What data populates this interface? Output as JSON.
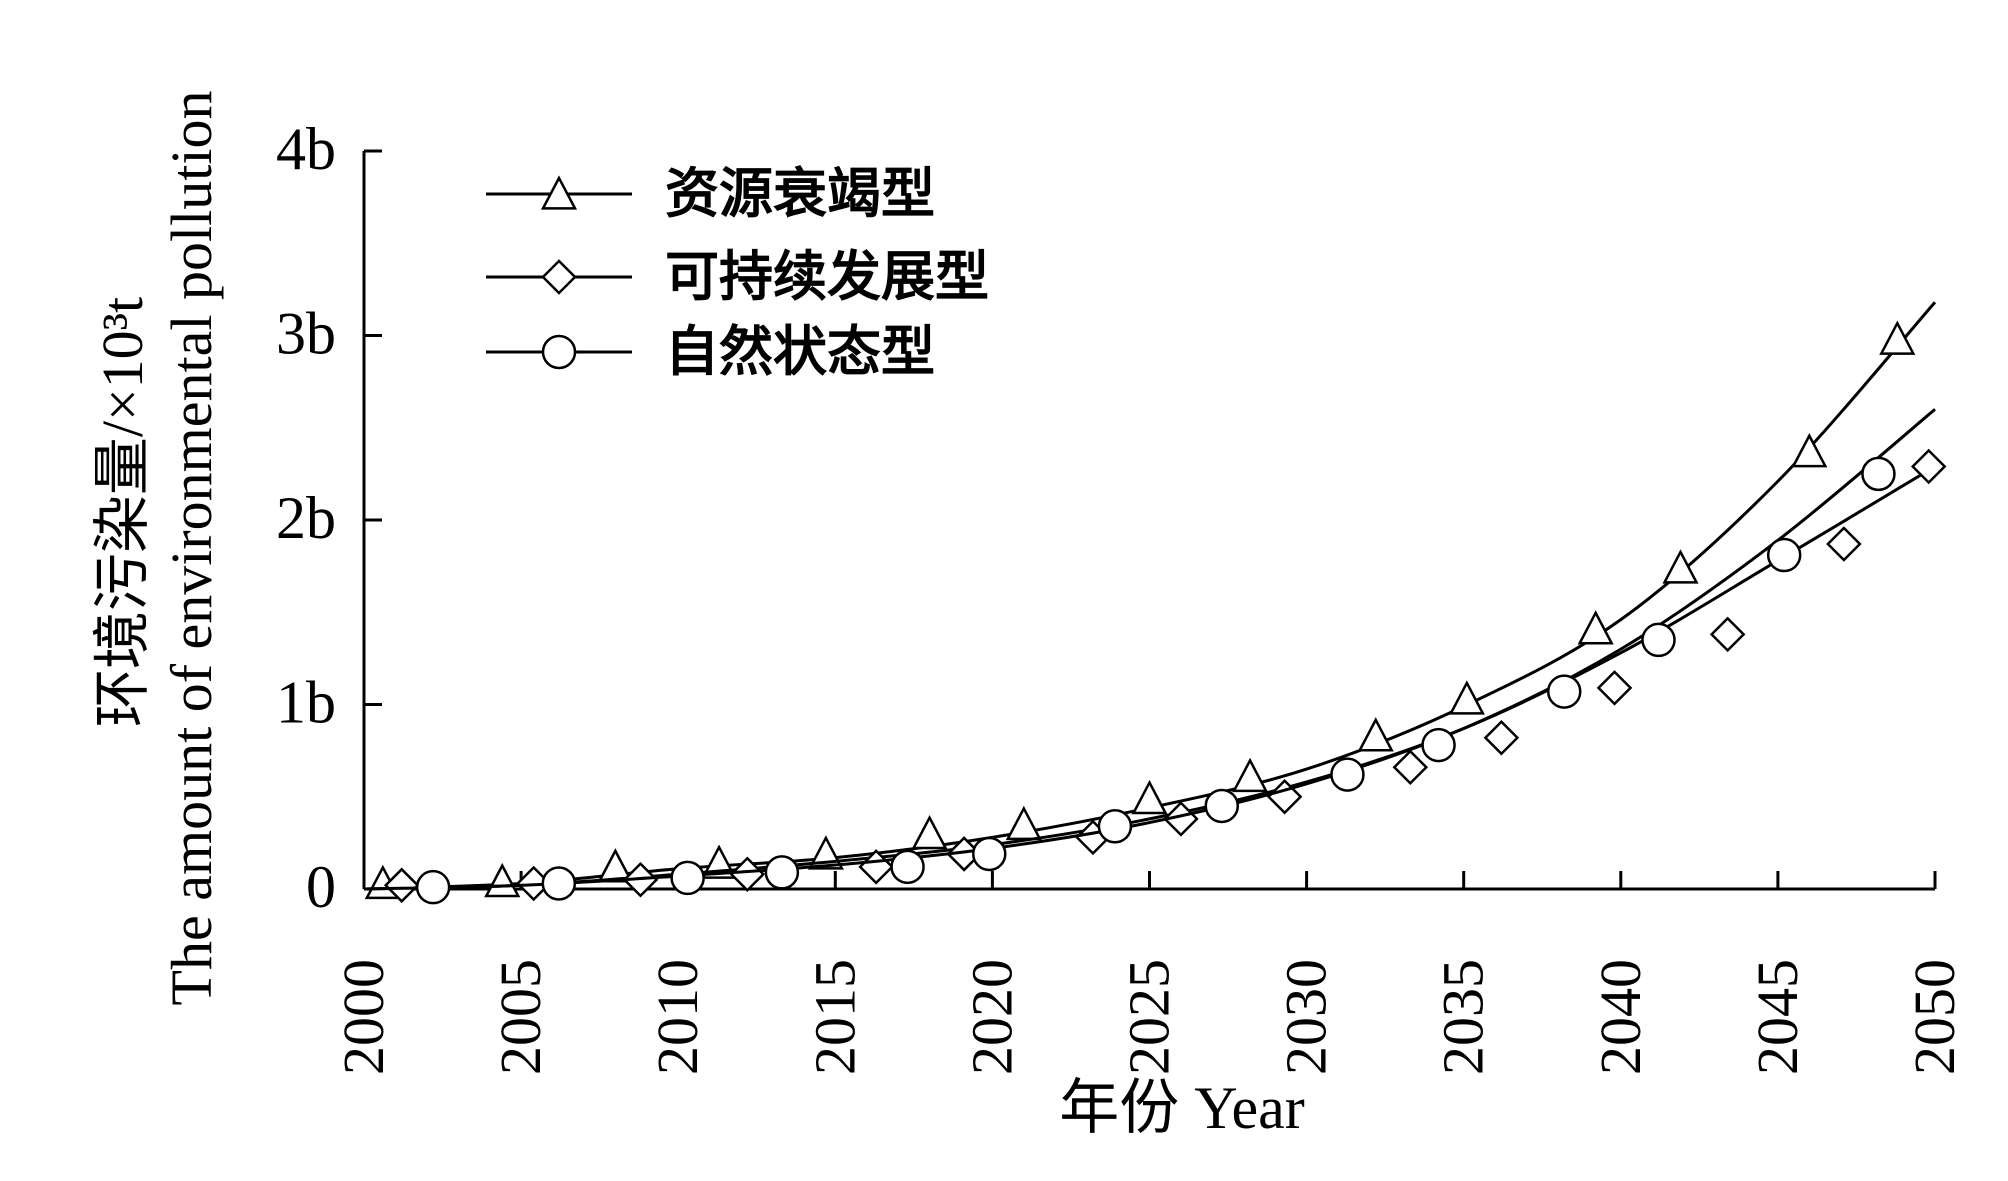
{
  "chart_data": {
    "type": "line",
    "xlabel": "年份 Year",
    "ylabel_line1": "环境污染量/×10³t",
    "ylabel_line2": "The amount of environmental pollution",
    "xlim": [
      2000,
      2050
    ],
    "ylim": [
      0,
      4
    ],
    "x_ticks": [
      "2000",
      "2005",
      "2010",
      "2015",
      "2020",
      "2025",
      "2030",
      "2035",
      "2040",
      "2045",
      "2050"
    ],
    "x_tick_values": [
      2000,
      2005,
      2010,
      2015,
      2020,
      2025,
      2030,
      2035,
      2040,
      2045,
      2050
    ],
    "y_ticks": [
      "0",
      "1b",
      "2b",
      "3b",
      "4b"
    ],
    "y_tick_values": [
      0,
      1,
      2,
      3,
      4
    ],
    "grid": false,
    "legend_position": "top-left",
    "series": [
      {
        "name": "资源衰竭型",
        "marker": "triangle",
        "curve_x": [
          2000,
          2005,
          2010,
          2015,
          2020,
          2025,
          2030,
          2035,
          2040,
          2045,
          2050
        ],
        "curve_y": [
          0,
          0.03,
          0.11,
          0.17,
          0.28,
          0.44,
          0.65,
          0.99,
          1.46,
          2.21,
          3.18
        ],
        "points_x": [
          2000.6,
          2004.4,
          2008.0,
          2011.3,
          2014.7,
          2018.0,
          2021.0,
          2025.0,
          2028.2,
          2032.2,
          2035.1,
          2039.2,
          2041.9,
          2046.0,
          2048.8
        ],
        "points_y": [
          0.03,
          0.04,
          0.12,
          0.14,
          0.19,
          0.3,
          0.35,
          0.49,
          0.61,
          0.83,
          1.03,
          1.41,
          1.74,
          2.37,
          2.98
        ]
      },
      {
        "name": "可持续发展型",
        "marker": "diamond",
        "curve_x": [
          2000,
          2005,
          2010,
          2015,
          2020,
          2025,
          2030,
          2035,
          2040,
          2045,
          2050
        ],
        "curve_y": [
          0,
          0.02,
          0.08,
          0.15,
          0.24,
          0.38,
          0.58,
          0.87,
          1.28,
          1.78,
          2.29
        ],
        "points_x": [
          2001.2,
          2005.4,
          2008.8,
          2012.2,
          2016.3,
          2019.1,
          2023.2,
          2026.0,
          2029.3,
          2033.3,
          2036.2,
          2039.8,
          2043.4,
          2047.1,
          2049.8
        ],
        "points_y": [
          0.02,
          0.03,
          0.05,
          0.08,
          0.12,
          0.19,
          0.28,
          0.38,
          0.5,
          0.66,
          0.82,
          1.09,
          1.38,
          1.87,
          2.29
        ]
      },
      {
        "name": "自然状态型",
        "marker": "circle",
        "curve_x": [
          2000,
          2005,
          2010,
          2015,
          2020,
          2025,
          2030,
          2035,
          2040,
          2045,
          2050
        ],
        "curve_y": [
          0,
          0.02,
          0.07,
          0.13,
          0.22,
          0.36,
          0.57,
          0.87,
          1.3,
          1.89,
          2.6
        ],
        "points_x": [
          2002.2,
          2006.2,
          2010.3,
          2013.3,
          2017.3,
          2019.9,
          2023.9,
          2027.3,
          2031.3,
          2034.2,
          2038.2,
          2041.2,
          2045.2,
          2048.2
        ],
        "points_y": [
          0.01,
          0.03,
          0.06,
          0.09,
          0.12,
          0.19,
          0.34,
          0.45,
          0.62,
          0.78,
          1.07,
          1.35,
          1.81,
          2.25
        ]
      }
    ]
  }
}
